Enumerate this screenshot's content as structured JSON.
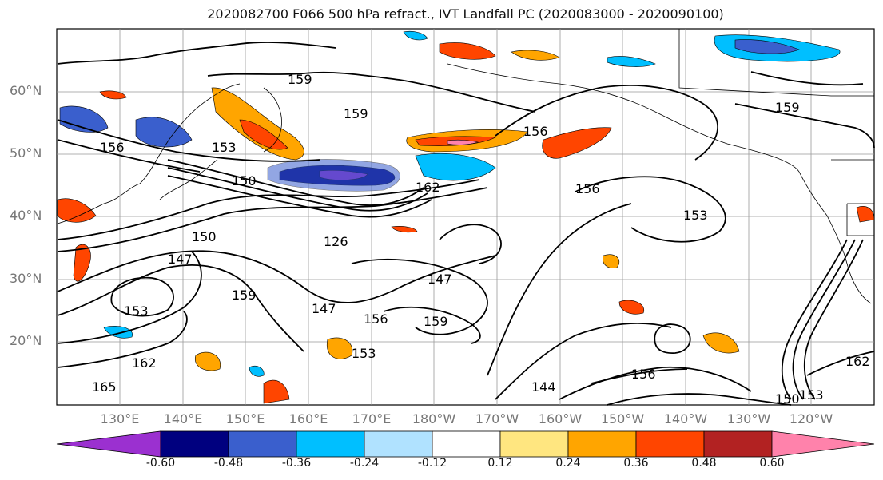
{
  "title": "2020082700 F066 500 hPa refract., IVT Landfall PC (2020083000 - 2020090100)",
  "latitude_labels": [
    "60°N",
    "50°N",
    "40°N",
    "30°N",
    "20°N"
  ],
  "longitude_labels": [
    "130°E",
    "140°E",
    "150°E",
    "160°E",
    "170°E",
    "180°W",
    "170°W",
    "160°W",
    "150°W",
    "140°W",
    "130°W",
    "120°W"
  ],
  "contour_labels": [
    "159",
    "159",
    "159",
    "156",
    "156",
    "156",
    "153",
    "153",
    "150",
    "150",
    "147",
    "147",
    "147",
    "144",
    "162",
    "162",
    "162",
    "165",
    "153",
    "159",
    "159",
    "156",
    "153",
    "150",
    "153",
    "156",
    "126"
  ],
  "colorbar": {
    "ticks": [
      "-0.60",
      "-0.48",
      "-0.36",
      "-0.24",
      "-0.12",
      "0.12",
      "0.24",
      "0.36",
      "0.48",
      "0.60"
    ],
    "colors": [
      "#9b30d0",
      "#00007f",
      "#3a5fcd",
      "#00bfff",
      "#b0e2ff",
      "#ffffff",
      "#ffe680",
      "#ffa500",
      "#ff4500",
      "#b22222",
      "#ff82ab"
    ]
  }
}
